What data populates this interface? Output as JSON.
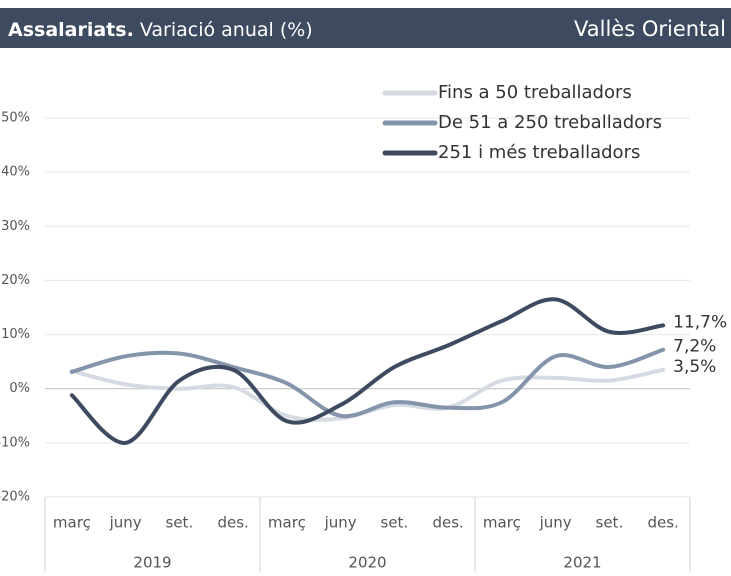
{
  "header": {
    "title_bold": "Assalariats.",
    "title": "Variació anual (%)",
    "region": "Vallès Oriental"
  },
  "chart_data": {
    "type": "line",
    "categories": [
      "març",
      "juny",
      "set.",
      "des.",
      "març",
      "juny",
      "set.",
      "des.",
      "març",
      "juny",
      "set.",
      "des."
    ],
    "groups": [
      "2019",
      "2020",
      "2021"
    ],
    "ylim": [
      -20,
      50
    ],
    "yticks": [
      {
        "value": -20,
        "label": "-20%"
      },
      {
        "value": -10,
        "label": "-10%"
      },
      {
        "value": 0,
        "label": "0%"
      },
      {
        "value": 10,
        "label": "10%"
      },
      {
        "value": 20,
        "label": "20%"
      },
      {
        "value": 30,
        "label": "30%"
      },
      {
        "value": 40,
        "label": "40%"
      },
      {
        "value": 50,
        "label": "50%"
      }
    ],
    "grid": true,
    "legend": "top-right",
    "series": [
      {
        "name": "Fins a 50 treballadors",
        "color": "#d5dae3",
        "values": [
          3.3,
          0.8,
          0,
          0.3,
          -5,
          -5.5,
          -3,
          -3.5,
          1.5,
          2,
          1.5,
          3.5
        ],
        "value_labels": [
          null,
          null,
          null,
          null,
          null,
          null,
          null,
          null,
          null,
          null,
          null,
          "3,5%"
        ]
      },
      {
        "name": "De 51 a 250 treballadors",
        "color": "#8394ab",
        "values": [
          3.1,
          6,
          6.5,
          4,
          1,
          -5,
          -2.5,
          -3.5,
          -2.5,
          6,
          4,
          7.2
        ],
        "value_labels": [
          null,
          null,
          null,
          null,
          null,
          null,
          null,
          null,
          null,
          null,
          null,
          "7,2%"
        ]
      },
      {
        "name": "251 i més treballadors",
        "color": "#3e4a5f",
        "values": [
          -1.2,
          -10,
          1.5,
          3.5,
          -6,
          -3,
          4,
          8,
          12.5,
          16.5,
          10.5,
          11.7
        ],
        "value_labels": [
          null,
          null,
          null,
          null,
          null,
          null,
          null,
          null,
          null,
          null,
          null,
          "11,7%"
        ]
      }
    ]
  }
}
